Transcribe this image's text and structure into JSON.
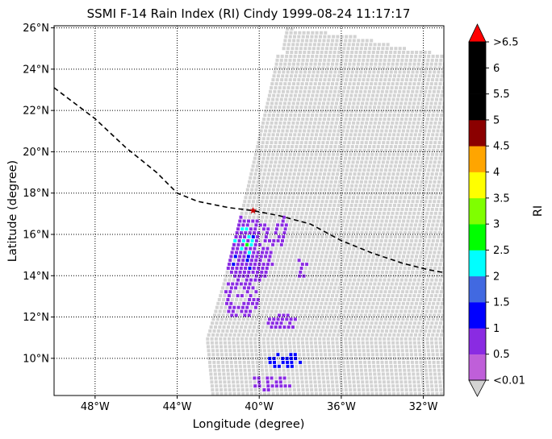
{
  "title": "SSMI F-14 Rain Index (RI) Cindy 1999-08-24 11:17:17",
  "xlabel": "Longitude (degree)",
  "ylabel": "Latitude (degree)",
  "map": {
    "lon_range": [
      -50,
      -31
    ],
    "lat_range": [
      8.2,
      26.1
    ],
    "lon_ticks": [
      {
        "value": -48,
        "label": "48°W"
      },
      {
        "value": -44,
        "label": "44°W"
      },
      {
        "value": -40,
        "label": "40°W"
      },
      {
        "value": -36,
        "label": "36°W"
      },
      {
        "value": -32,
        "label": "32°W"
      }
    ],
    "lat_ticks": [
      {
        "value": 10,
        "label": "10°N"
      },
      {
        "value": 12,
        "label": "12°N"
      },
      {
        "value": 14,
        "label": "14°N"
      },
      {
        "value": 16,
        "label": "16°N"
      },
      {
        "value": 18,
        "label": "18°N"
      },
      {
        "value": 20,
        "label": "20°N"
      },
      {
        "value": 22,
        "label": "22°N"
      },
      {
        "value": 24,
        "label": "24°N"
      },
      {
        "value": 26,
        "label": "26°N"
      }
    ],
    "gridlines": "dotted",
    "track_style": "dashed",
    "track": [
      [
        -50.0,
        23.1
      ],
      [
        -48.0,
        21.6
      ],
      [
        -46.5,
        20.2
      ],
      [
        -45.0,
        19.0
      ],
      [
        -44.0,
        18.0
      ],
      [
        -43.0,
        17.6
      ],
      [
        -41.5,
        17.3
      ],
      [
        -40.3,
        17.15
      ],
      [
        -39.0,
        16.9
      ],
      [
        -37.5,
        16.5
      ],
      [
        -36.0,
        15.7
      ],
      [
        -34.5,
        15.1
      ],
      [
        -33.0,
        14.6
      ],
      [
        -31.8,
        14.3
      ],
      [
        -31.0,
        14.15
      ]
    ],
    "center_marker": {
      "lon": -40.3,
      "lat": 17.15,
      "color": "#cc0000"
    },
    "swath": {
      "west_edge": [
        [
          -42.6,
          11.0
        ],
        [
          -41.7,
          14.0
        ],
        [
          -40.7,
          18.0
        ],
        [
          -40.0,
          21.0
        ],
        [
          -39.3,
          24.0
        ],
        [
          -38.9,
          26.1
        ]
      ],
      "east_edge": [
        [
          -31.0,
          7.5
        ],
        [
          -31.0,
          24.8
        ]
      ],
      "top_edge": [
        [
          -38.9,
          26.1
        ],
        [
          -35.5,
          25.7
        ],
        [
          -33.0,
          25.1
        ],
        [
          -31.0,
          24.8
        ]
      ],
      "no_rain_color": "#d3d3d3"
    },
    "rain_regions": [
      {
        "lon": -41.0,
        "lat": 15.5,
        "rx": 0.9,
        "ry": 1.3,
        "level": 2
      },
      {
        "lon": -40.9,
        "lat": 15.7,
        "rx": 0.6,
        "ry": 0.7,
        "level": 4
      },
      {
        "lon": -40.8,
        "lat": 15.75,
        "rx": 0.3,
        "ry": 0.3,
        "level": 5
      },
      {
        "lon": -40.6,
        "lat": 15.3,
        "rx": 1.3,
        "ry": 1.6,
        "level": 1
      },
      {
        "lon": -41.0,
        "lat": 13.0,
        "rx": 0.9,
        "ry": 1.0,
        "level": 1
      },
      {
        "lon": -39.0,
        "lat": 11.8,
        "rx": 0.8,
        "ry": 0.4,
        "level": 1
      },
      {
        "lon": -38.9,
        "lat": 10.0,
        "rx": 0.9,
        "ry": 0.4,
        "level": 2
      },
      {
        "lon": -39.5,
        "lat": 8.9,
        "rx": 1.0,
        "ry": 0.4,
        "level": 1
      },
      {
        "lon": -41.4,
        "lat": 16.9,
        "rx": 0.5,
        "ry": 0.7,
        "level": 1
      },
      {
        "lon": -39.0,
        "lat": 16.3,
        "rx": 0.3,
        "ry": 0.8,
        "level": 1
      },
      {
        "lon": -38.0,
        "lat": 14.6,
        "rx": 0.3,
        "ry": 0.6,
        "level": 1
      }
    ]
  },
  "colorbar": {
    "label": "RI",
    "tick_labels": [
      "<0.01",
      "0.5",
      "1",
      "1.5",
      "2",
      "2.5",
      "3",
      "3.5",
      "4",
      "4.5",
      "5",
      "5.5",
      "6",
      ">6.5"
    ],
    "colors": [
      "#bf5fd9",
      "#8a2be2",
      "#0000ff",
      "#4169e1",
      "#00ffff",
      "#00ff00",
      "#7fff00",
      "#ffff00",
      "#ffa500",
      "#8b0000",
      "#000000",
      "#000000",
      "#000000"
    ],
    "under_color": "#d3d3d3",
    "over_color": "#ff0000"
  }
}
